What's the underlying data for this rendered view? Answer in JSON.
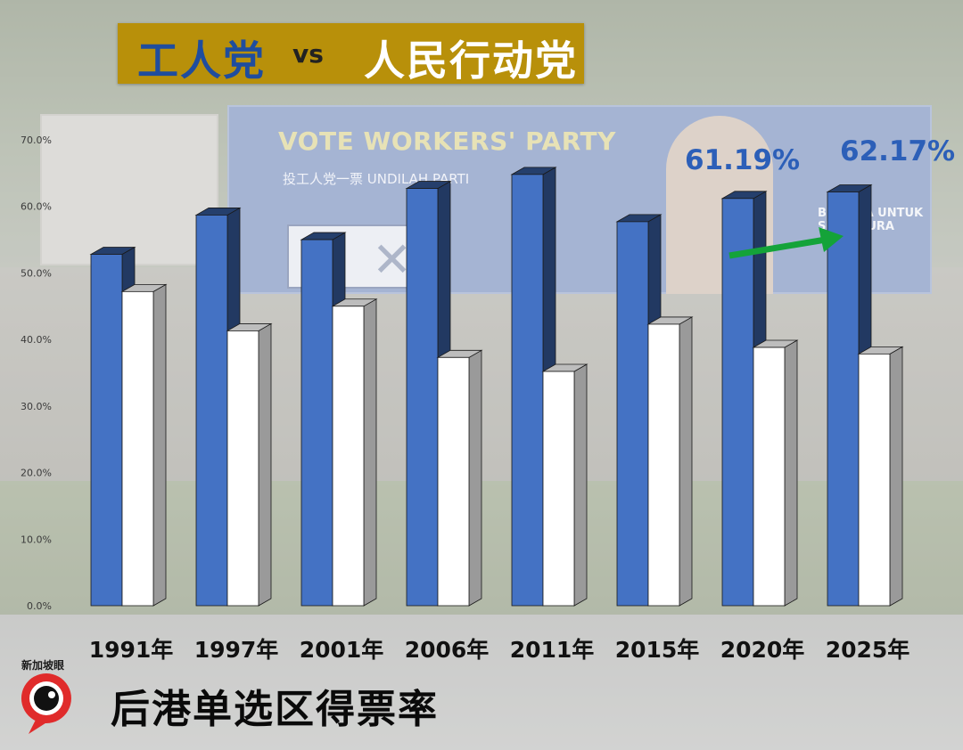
{
  "title": {
    "party_a": "工人党",
    "vs": "vs",
    "party_b": "人民行动党"
  },
  "caption": "后港单选区得票率",
  "logo": {
    "text": "新加坡眼",
    "icon": "speech-bubble-logo-icon"
  },
  "background_banner": {
    "headline": "VOTE WORKERS' PARTY",
    "subline": "投工人党一票  UNDILAH PARTI",
    "right_text": "BEKERJA UNTUK SINGAPURA"
  },
  "colors": {
    "workers_party": "#4472c4",
    "pap": "#ffffff",
    "title_bar": "#b8900a",
    "annotation": "#2c5fb8",
    "arrow": "#14a339"
  },
  "chart_data": {
    "type": "bar",
    "categories": [
      "1991年",
      "1997年",
      "2001年",
      "2006年",
      "2011年",
      "2015年",
      "2020年",
      "2025年"
    ],
    "series": [
      {
        "name": "工人党",
        "values": [
          52.8,
          58.7,
          55.0,
          62.7,
          64.8,
          57.7,
          61.19,
          62.17
        ]
      },
      {
        "name": "人民行动党",
        "values": [
          47.2,
          41.3,
          45.0,
          37.3,
          35.2,
          42.3,
          38.81,
          37.83
        ]
      }
    ],
    "yticks": [
      "0.0%",
      "10.0%",
      "20.0%",
      "30.0%",
      "40.0%",
      "50.0%",
      "60.0%",
      "70.0%"
    ],
    "ylim": [
      0,
      70
    ],
    "annotations": [
      {
        "category": "2020年",
        "text": "61.19%"
      },
      {
        "category": "2025年",
        "text": "62.17%"
      }
    ],
    "grid": false,
    "legend": "none"
  }
}
